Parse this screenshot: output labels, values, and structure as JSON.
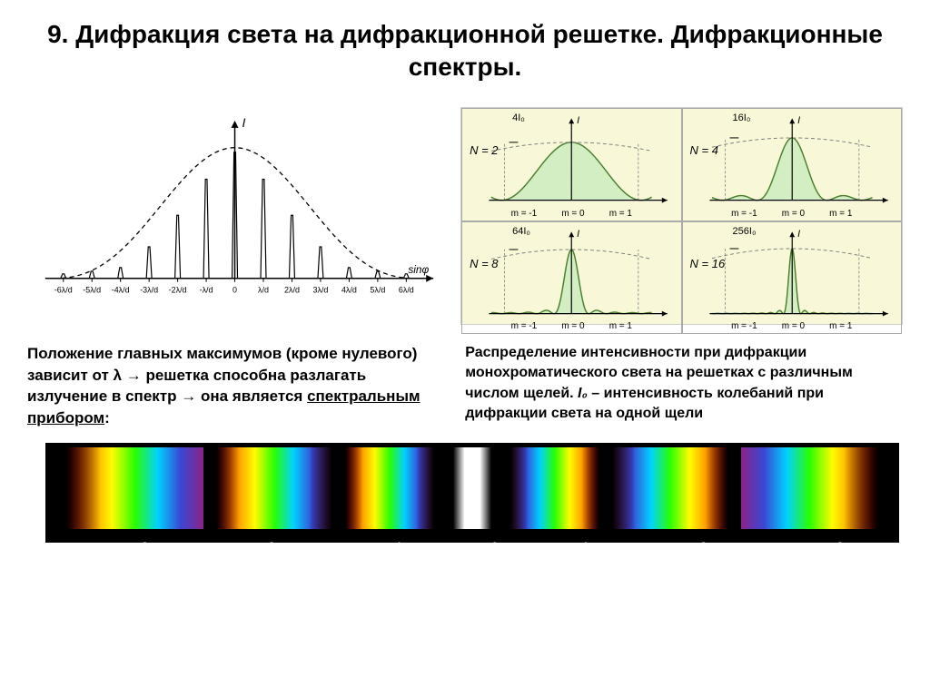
{
  "title": "9. Дифракция света на дифракционной решетке. Дифракционные спектры.",
  "leftText": {
    "part1": "Положение главных максимумов (кроме нулевого) зависит от λ → решетка способна разлагать излучение в спектр → она является ",
    "underlined": "спектральным прибором",
    "part2": ":"
  },
  "rightText": {
    "part1": "Распределение интенсивности при дифракции монохроматического света на решетках с различным числом щелей. ",
    "italic": "I₀",
    "part2": " – интенсивность колебаний при дифракции света на одной щели"
  },
  "leftChart": {
    "yLabel": "I",
    "xLabel": "sinφ",
    "xTicks": [
      "-6λ/d",
      "-5λ/d",
      "-4λ/d",
      "-3λ/d",
      "-2λ/d",
      "-λ/d",
      "0",
      "λ/d",
      "2λ/d",
      "3λ/d",
      "4λ/d",
      "5λ/d",
      "6λ/d"
    ],
    "envelopeColor": "#000000",
    "peaksColor": "#000000",
    "mainPeakHeights": [
      5,
      8,
      12,
      35,
      70,
      110,
      140,
      110,
      70,
      35,
      12,
      8,
      5
    ],
    "sideLobes": [
      15,
      20,
      15
    ]
  },
  "miniCharts": [
    {
      "N": "N = 2",
      "topLabel": "4I₀",
      "I": "I",
      "m": [
        "m = -1",
        "m = 0",
        "m = 1"
      ],
      "peaks": 3,
      "width": 0.4,
      "peakH": 65
    },
    {
      "N": "N = 4",
      "topLabel": "16I₀",
      "I": "I",
      "m": [
        "m = -1",
        "m = 0",
        "m = 1"
      ],
      "peaks": 3,
      "width": 0.15,
      "peakH": 70,
      "minor": 2
    },
    {
      "N": "N = 8",
      "topLabel": "64I₀",
      "I": "I",
      "m": [
        "m = -1",
        "m = 0",
        "m = 1"
      ],
      "peaks": 3,
      "width": 0.06,
      "peakH": 72,
      "minor": 6
    },
    {
      "N": "N = 16",
      "topLabel": "256I₀",
      "I": "I",
      "m": [
        "m = -1",
        "m = 0",
        "m = 1"
      ],
      "peaks": 3,
      "width": 0.03,
      "peakH": 73,
      "minor": 14
    }
  ],
  "miniStyle": {
    "bgColor": "#f8f8d8",
    "fillColor": "#d4eec4",
    "lineColor": "#4a8030",
    "envelopeColor": "#808080",
    "axisColor": "#000000"
  },
  "spectrum": {
    "orders": [
      "m=-3",
      "m=-2",
      "m=-1",
      "m=0",
      "m=1",
      "m=2",
      "m=3"
    ],
    "orderPositions": [
      80,
      220,
      360,
      470,
      570,
      700,
      850
    ],
    "centralColor": "#ffffff",
    "rainbowLeft": [
      "#8a2387",
      "#3a47d5",
      "#00d2ff",
      "#2aff00",
      "#fffc00",
      "#ff8c00",
      "#ff0000"
    ],
    "rainbowRight": [
      "#ff0000",
      "#ff8c00",
      "#fffc00",
      "#2aff00",
      "#00d2ff",
      "#3a47d5",
      "#8a2387"
    ],
    "segmentWidths": [
      120,
      15,
      100,
      15,
      80,
      20,
      30,
      20,
      80,
      15,
      100,
      15,
      120
    ],
    "bgColor": "#000000"
  }
}
